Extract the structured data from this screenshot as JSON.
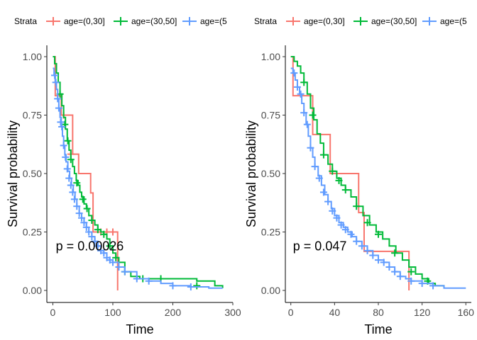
{
  "legend": {
    "title": "Strata",
    "entries": [
      {
        "label": "age=(0,30]",
        "color": "#F8766D"
      },
      {
        "label": "age=(30,50]",
        "color": "#00BA38"
      },
      {
        "label": "age=(5",
        "color": "#619CFF"
      }
    ]
  },
  "chart_data": [
    {
      "type": "line",
      "subtype": "kaplan-meier",
      "xlabel": "Time",
      "ylabel": "Survival probability",
      "xlim": [
        -10,
        300
      ],
      "ylim": [
        0,
        1.05
      ],
      "x_ticks": [
        0,
        100,
        200,
        300
      ],
      "y_ticks": [
        0.0,
        0.25,
        0.5,
        0.75,
        1.0
      ],
      "y_tick_labels": [
        "0.00",
        "0.25",
        "0.50",
        "0.75",
        "1.00"
      ],
      "pvalue_label": "p = 0.00026",
      "pvalue_pos": [
        5,
        0.19
      ],
      "series": [
        {
          "name": "age=(0,30]",
          "color": "#F8766D",
          "x": [
            0,
            4,
            14,
            33,
            43,
            63,
            67,
            79,
            104,
            108
          ],
          "y": [
            1.0,
            0.833,
            0.75,
            0.583,
            0.5,
            0.417,
            0.25,
            0.25,
            0.25,
            0.0
          ],
          "censor_x": [
            18,
            30,
            80,
            90,
            100
          ],
          "censor_y": [
            0.75,
            0.583,
            0.25,
            0.25,
            0.25
          ]
        },
        {
          "name": "age=(30,50]",
          "color": "#00BA38",
          "x": [
            0,
            3,
            6,
            9,
            12,
            15,
            18,
            21,
            24,
            27,
            30,
            33,
            36,
            39,
            42,
            45,
            48,
            52,
            56,
            60,
            65,
            70,
            75,
            80,
            85,
            90,
            95,
            100,
            105,
            110,
            120,
            130,
            145,
            160,
            180,
            200,
            240,
            270,
            283
          ],
          "y": [
            1.0,
            0.97,
            0.93,
            0.89,
            0.84,
            0.79,
            0.74,
            0.69,
            0.64,
            0.6,
            0.56,
            0.53,
            0.5,
            0.47,
            0.45,
            0.42,
            0.4,
            0.37,
            0.35,
            0.32,
            0.3,
            0.28,
            0.26,
            0.25,
            0.24,
            0.22,
            0.19,
            0.16,
            0.14,
            0.12,
            0.08,
            0.06,
            0.05,
            0.05,
            0.05,
            0.05,
            0.04,
            0.02,
            0.01
          ],
          "censor_x": [
            12,
            20,
            25,
            30,
            40,
            50,
            57,
            65,
            75,
            85,
            95,
            105,
            120,
            150,
            180,
            240
          ],
          "censor_y": [
            0.84,
            0.71,
            0.64,
            0.56,
            0.46,
            0.39,
            0.35,
            0.3,
            0.26,
            0.24,
            0.19,
            0.14,
            0.08,
            0.05,
            0.05,
            0.02
          ]
        },
        {
          "name": "age=(5",
          "color": "#619CFF",
          "x": [
            0,
            2,
            4,
            6,
            8,
            10,
            12,
            14,
            16,
            18,
            20,
            22,
            25,
            28,
            31,
            34,
            37,
            40,
            44,
            48,
            52,
            56,
            60,
            65,
            70,
            75,
            80,
            85,
            90,
            95,
            100,
            110,
            120,
            140,
            160,
            180,
            200,
            230,
            260,
            283
          ],
          "y": [
            0.95,
            0.92,
            0.89,
            0.86,
            0.82,
            0.78,
            0.74,
            0.7,
            0.66,
            0.62,
            0.58,
            0.55,
            0.51,
            0.48,
            0.45,
            0.42,
            0.39,
            0.36,
            0.33,
            0.31,
            0.29,
            0.27,
            0.25,
            0.23,
            0.21,
            0.19,
            0.17,
            0.16,
            0.14,
            0.13,
            0.12,
            0.1,
            0.08,
            0.05,
            0.04,
            0.03,
            0.02,
            0.015,
            0.01,
            0.01
          ],
          "censor_x": [
            3,
            5,
            8,
            10,
            13,
            15,
            18,
            21,
            24,
            27,
            30,
            33,
            36,
            40,
            44,
            48,
            52,
            56,
            60,
            65,
            70,
            75,
            80,
            85,
            90,
            95,
            100,
            110,
            120,
            140,
            160,
            200,
            230
          ],
          "censor_y": [
            0.92,
            0.89,
            0.82,
            0.78,
            0.72,
            0.7,
            0.62,
            0.57,
            0.52,
            0.48,
            0.45,
            0.42,
            0.39,
            0.36,
            0.33,
            0.31,
            0.29,
            0.27,
            0.25,
            0.23,
            0.21,
            0.19,
            0.17,
            0.16,
            0.14,
            0.13,
            0.12,
            0.1,
            0.08,
            0.05,
            0.04,
            0.02,
            0.015
          ]
        }
      ]
    },
    {
      "type": "line",
      "subtype": "kaplan-meier",
      "xlabel": "Time",
      "ylabel": "Survival probability",
      "xlim": [
        -5,
        165
      ],
      "ylim": [
        0,
        1.05
      ],
      "x_ticks": [
        0,
        40,
        80,
        120,
        160
      ],
      "y_ticks": [
        0.0,
        0.25,
        0.5,
        0.75,
        1.0
      ],
      "y_tick_labels": [
        "0.00",
        "0.25",
        "0.50",
        "0.75",
        "1.00"
      ],
      "pvalue_label": "p = 0.047",
      "pvalue_pos": [
        2,
        0.19
      ],
      "series": [
        {
          "name": "age=(0,30]",
          "color": "#F8766D",
          "x": [
            0,
            2,
            17,
            20,
            36,
            62,
            67,
            87,
            108
          ],
          "y": [
            1.0,
            0.833,
            0.833,
            0.667,
            0.5,
            0.333,
            0.167,
            0.167,
            0.0
          ],
          "censor_x": [],
          "censor_y": []
        },
        {
          "name": "age=(30,50]",
          "color": "#00BA38",
          "x": [
            0,
            3,
            6,
            9,
            12,
            15,
            18,
            21,
            24,
            27,
            30,
            34,
            38,
            42,
            46,
            50,
            55,
            60,
            66,
            72,
            78,
            84,
            90,
            96,
            102,
            108,
            114,
            120,
            126,
            132,
            140
          ],
          "y": [
            1.0,
            0.98,
            0.96,
            0.93,
            0.89,
            0.84,
            0.78,
            0.73,
            0.67,
            0.63,
            0.58,
            0.54,
            0.51,
            0.48,
            0.45,
            0.43,
            0.4,
            0.36,
            0.32,
            0.28,
            0.25,
            0.22,
            0.19,
            0.16,
            0.13,
            0.1,
            0.07,
            0.05,
            0.03,
            0.02,
            0.01
          ],
          "censor_x": [
            12,
            20,
            30,
            38,
            44,
            50,
            60,
            70,
            80,
            95,
            110,
            125
          ],
          "censor_y": [
            0.89,
            0.75,
            0.58,
            0.51,
            0.47,
            0.43,
            0.36,
            0.29,
            0.24,
            0.16,
            0.08,
            0.04
          ]
        },
        {
          "name": "age=(5",
          "color": "#619CFF",
          "x": [
            0,
            2,
            4,
            6,
            8,
            10,
            12,
            14,
            16,
            18,
            20,
            22,
            25,
            28,
            31,
            34,
            37,
            40,
            44,
            48,
            52,
            56,
            60,
            65,
            70,
            75,
            80,
            85,
            90,
            95,
            100,
            105,
            110,
            120,
            130,
            140,
            160
          ],
          "y": [
            0.95,
            0.93,
            0.9,
            0.87,
            0.84,
            0.8,
            0.76,
            0.71,
            0.66,
            0.61,
            0.57,
            0.53,
            0.49,
            0.45,
            0.41,
            0.38,
            0.35,
            0.32,
            0.29,
            0.27,
            0.25,
            0.23,
            0.21,
            0.19,
            0.17,
            0.15,
            0.13,
            0.12,
            0.1,
            0.08,
            0.06,
            0.05,
            0.04,
            0.03,
            0.02,
            0.01,
            0.01
          ],
          "censor_x": [
            3,
            6,
            9,
            12,
            15,
            18,
            22,
            26,
            30,
            34,
            38,
            42,
            46,
            50,
            55,
            60,
            65,
            70,
            75,
            80,
            85,
            90,
            95,
            100,
            110,
            120,
            130
          ],
          "censor_y": [
            0.93,
            0.87,
            0.84,
            0.76,
            0.71,
            0.61,
            0.53,
            0.48,
            0.42,
            0.38,
            0.34,
            0.31,
            0.28,
            0.26,
            0.24,
            0.21,
            0.19,
            0.17,
            0.15,
            0.13,
            0.12,
            0.1,
            0.08,
            0.06,
            0.04,
            0.03,
            0.02
          ]
        }
      ]
    }
  ]
}
